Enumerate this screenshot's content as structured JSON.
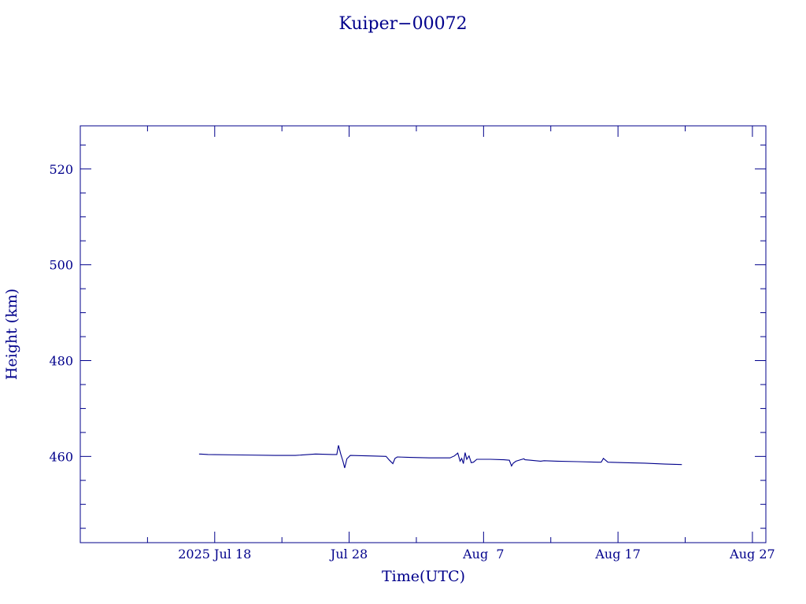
{
  "chart_data": {
    "type": "line",
    "title": "Kuiper−00072",
    "xlabel": "Time(UTC)",
    "ylabel": "Height (km)",
    "xlim": [
      "2025-07-08",
      "2025-08-28"
    ],
    "ylim": [
      442,
      529
    ],
    "x_major_ticks": [
      {
        "date": "2025-07-18",
        "label": "2025 Jul 18"
      },
      {
        "date": "2025-07-28",
        "label": "Jul 28"
      },
      {
        "date": "2025-08-07",
        "label": "Aug  7"
      },
      {
        "date": "2025-08-17",
        "label": "Aug 17"
      },
      {
        "date": "2025-08-27",
        "label": "Aug 27"
      }
    ],
    "x_minor_ticks": [
      "2025-07-13",
      "2025-07-23",
      "2025-08-02",
      "2025-08-12",
      "2025-08-22"
    ],
    "y_major_ticks": [
      460,
      480,
      500,
      520
    ],
    "y_minor_ticks": [
      445,
      450,
      455,
      465,
      470,
      475,
      485,
      490,
      495,
      505,
      510,
      515,
      525
    ],
    "grid": false,
    "series": [
      {
        "x": [
          "2025-07-16T20:00",
          "2025-07-17T12:00",
          "2025-07-20T00:00",
          "2025-07-22T12:00",
          "2025-07-24T00:00",
          "2025-07-25T12:00",
          "2025-07-26T19:00",
          "2025-07-27T02:00",
          "2025-07-27T05:00",
          "2025-07-27T09:00",
          "2025-07-27T13:00",
          "2025-07-27T16:00",
          "2025-07-27T20:00",
          "2025-07-28T02:00",
          "2025-07-29T12:00",
          "2025-07-30T18:00",
          "2025-07-31T00:00",
          "2025-07-31T06:00",
          "2025-07-31T10:00",
          "2025-07-31T14:00",
          "2025-08-01T12:00",
          "2025-08-03T00:00",
          "2025-08-04T12:00",
          "2025-08-04T20:00",
          "2025-08-05T02:00",
          "2025-08-05T06:00",
          "2025-08-05T09:00",
          "2025-08-05T12:00",
          "2025-08-05T15:00",
          "2025-08-05T18:00",
          "2025-08-05T22:00",
          "2025-08-06T02:00",
          "2025-08-06T06:00",
          "2025-08-06T12:00",
          "2025-08-06T18:00",
          "2025-08-07T12:00",
          "2025-08-08T12:00",
          "2025-08-08T22:00",
          "2025-08-09T02:00",
          "2025-08-09T05:00",
          "2025-08-09T10:00",
          "2025-08-09T18:00",
          "2025-08-10T00:00",
          "2025-08-10T02:00",
          "2025-08-10T12:00",
          "2025-08-11T06:00",
          "2025-08-11T12:00",
          "2025-08-12T12:00",
          "2025-08-14T00:00",
          "2025-08-15T12:00",
          "2025-08-15T18:00",
          "2025-08-15T22:00",
          "2025-08-16T06:00",
          "2025-08-17T12:00",
          "2025-08-19T00:00",
          "2025-08-20T12:00",
          "2025-08-21T18:00"
        ],
        "y": [
          460.5,
          460.4,
          460.3,
          460.2,
          460.2,
          460.5,
          460.4,
          460.4,
          462.3,
          460.5,
          459.0,
          457.6,
          459.5,
          460.2,
          460.1,
          460.0,
          459.2,
          458.5,
          459.6,
          459.9,
          459.8,
          459.7,
          459.7,
          460.1,
          460.7,
          459.0,
          459.6,
          458.5,
          460.8,
          459.4,
          460.1,
          458.7,
          458.8,
          459.4,
          459.4,
          459.4,
          459.3,
          459.2,
          458.0,
          458.6,
          459.0,
          459.3,
          459.5,
          459.3,
          459.2,
          459.0,
          459.1,
          459.0,
          458.9,
          458.8,
          458.8,
          459.6,
          458.8,
          458.7,
          458.6,
          458.4,
          458.3
        ]
      }
    ]
  }
}
